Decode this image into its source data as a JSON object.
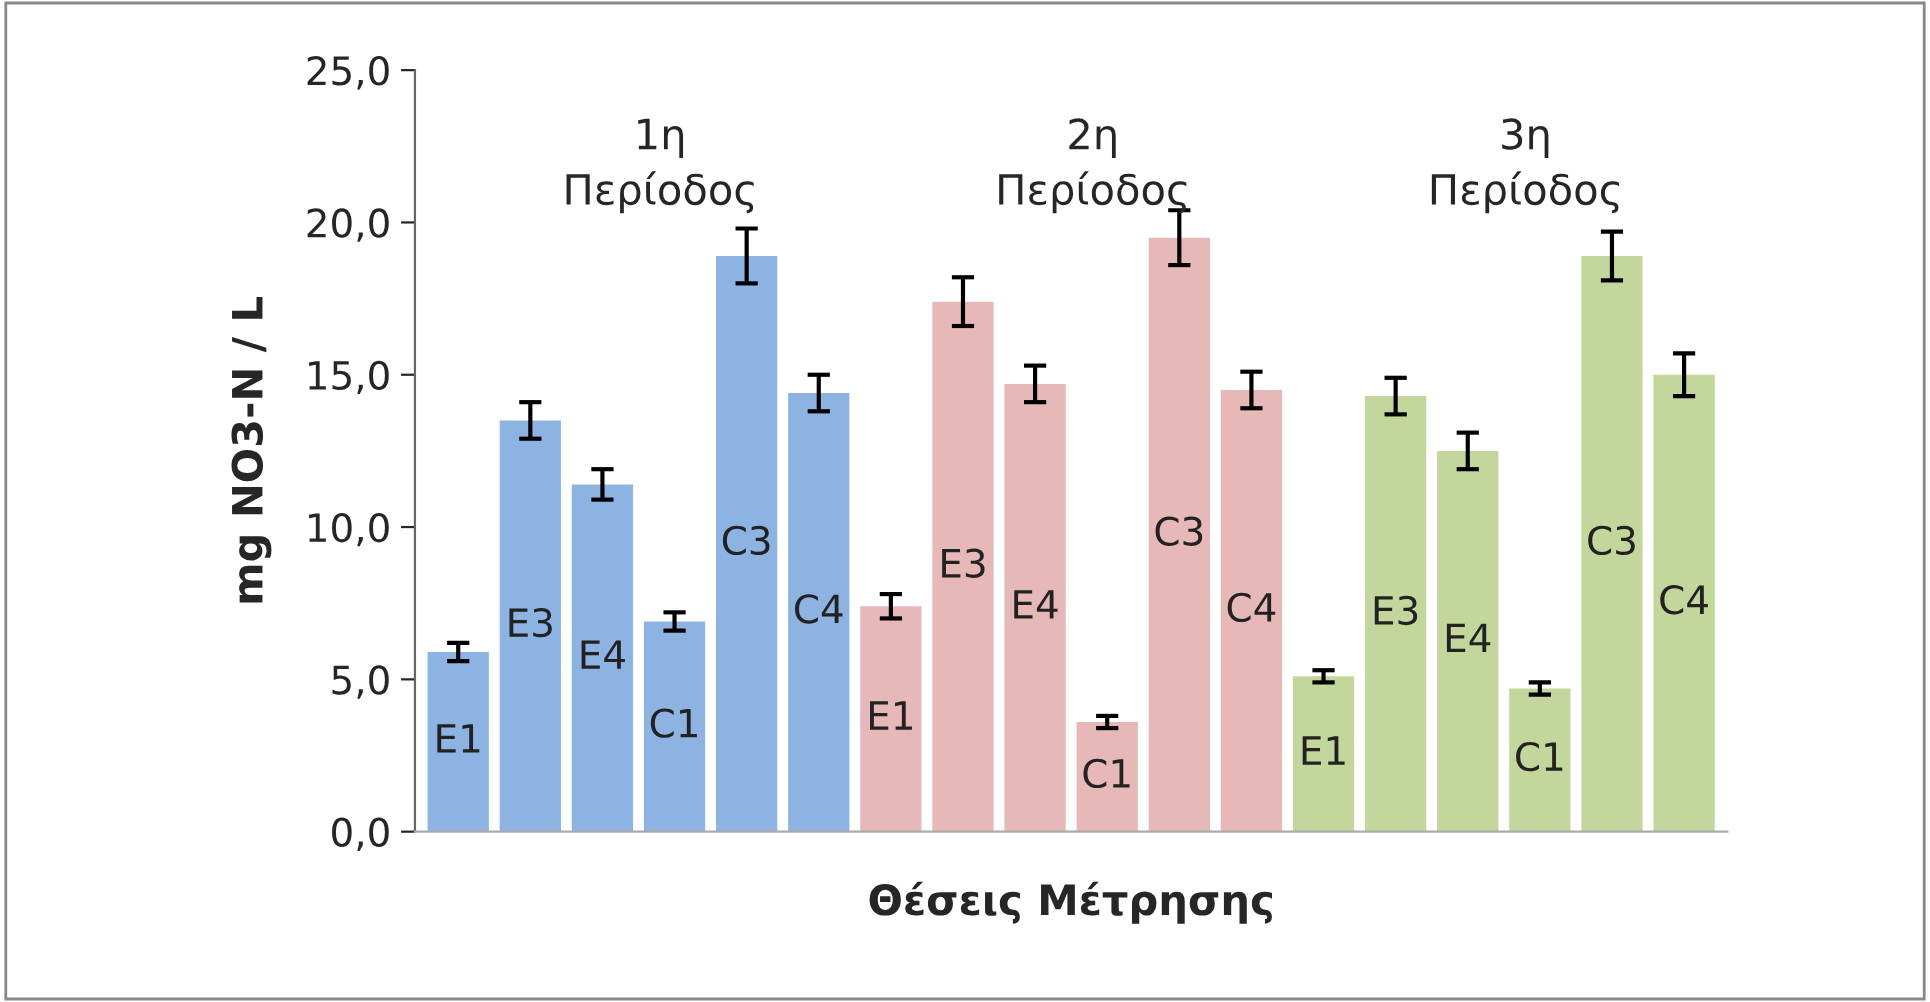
{
  "chart_data": {
    "type": "bar",
    "ylabel": "mg NO3-N / L",
    "xlabel": "Θέσεις Μέτρησης",
    "categories": [
      "E1",
      "E3",
      "E4",
      "C1",
      "C3",
      "C4",
      "E1",
      "E3",
      "E4",
      "C1",
      "C3",
      "C4",
      "E1",
      "E3",
      "E4",
      "C1",
      "C3",
      "C4"
    ],
    "values": [
      5.9,
      13.5,
      11.4,
      6.9,
      18.9,
      14.4,
      7.4,
      17.4,
      14.7,
      3.6,
      19.5,
      14.5,
      5.1,
      14.3,
      12.5,
      4.7,
      18.9,
      15.0
    ],
    "errors": [
      0.3,
      0.6,
      0.5,
      0.3,
      0.9,
      0.6,
      0.4,
      0.8,
      0.6,
      0.2,
      0.9,
      0.6,
      0.2,
      0.6,
      0.6,
      0.2,
      0.8,
      0.7
    ],
    "colors": [
      "#8db3e2",
      "#8db3e2",
      "#8db3e2",
      "#8db3e2",
      "#8db3e2",
      "#8db3e2",
      "#e6b9b8",
      "#e6b9b8",
      "#e6b9b8",
      "#e6b9b8",
      "#e6b9b8",
      "#e6b9b8",
      "#c3d69b",
      "#c3d69b",
      "#c3d69b",
      "#c3d69b",
      "#c3d69b",
      "#c3d69b"
    ],
    "annotations": [
      "1η\nΠερίοδος",
      "2η\nΠερίοδος",
      "3η\nΠερίοδος"
    ],
    "ylim": [
      0,
      25
    ],
    "yticks": [
      {
        "value": 0,
        "label": "0,0"
      },
      {
        "value": 5,
        "label": "5,0"
      },
      {
        "value": 10,
        "label": "10,0"
      },
      {
        "value": 15,
        "label": "15,0"
      },
      {
        "value": 20,
        "label": "20,0"
      },
      {
        "value": 25,
        "label": "25,0"
      }
    ],
    "grid": false,
    "legend": false
  }
}
